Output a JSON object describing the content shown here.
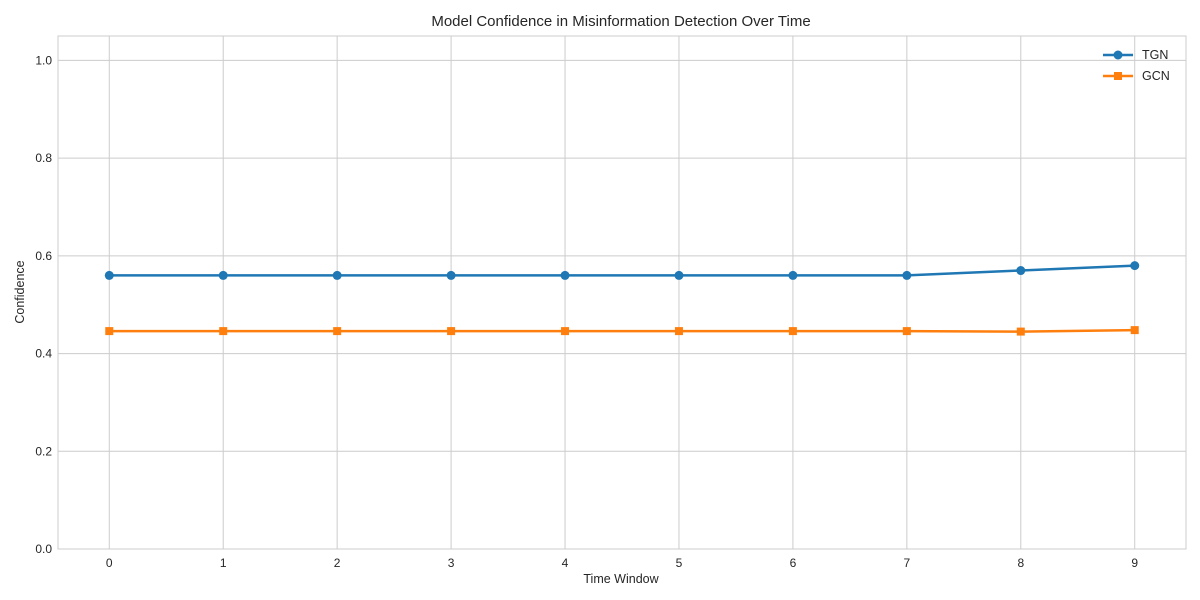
{
  "chart_data": {
    "type": "line",
    "title": "Model Confidence in Misinformation Detection Over Time",
    "xlabel": "Time Window",
    "ylabel": "Confidence",
    "x": [
      0,
      1,
      2,
      3,
      4,
      5,
      6,
      7,
      8,
      9
    ],
    "xticks": [
      "0",
      "1",
      "2",
      "3",
      "4",
      "5",
      "6",
      "7",
      "8",
      "9"
    ],
    "xlim": [
      -0.45,
      9.45
    ],
    "ylim": [
      0,
      1.05
    ],
    "yticks": [
      "0.0",
      "0.2",
      "0.4",
      "0.6",
      "0.8",
      "1.0"
    ],
    "grid": true,
    "legend_position": "top-right",
    "series": [
      {
        "name": "TGN",
        "color": "#1f77b4",
        "marker": "circle",
        "values": [
          0.56,
          0.56,
          0.56,
          0.56,
          0.56,
          0.56,
          0.56,
          0.56,
          0.57,
          0.58
        ]
      },
      {
        "name": "GCN",
        "color": "#ff7f0e",
        "marker": "square",
        "values": [
          0.446,
          0.446,
          0.446,
          0.446,
          0.446,
          0.446,
          0.446,
          0.446,
          0.445,
          0.448
        ]
      }
    ]
  }
}
